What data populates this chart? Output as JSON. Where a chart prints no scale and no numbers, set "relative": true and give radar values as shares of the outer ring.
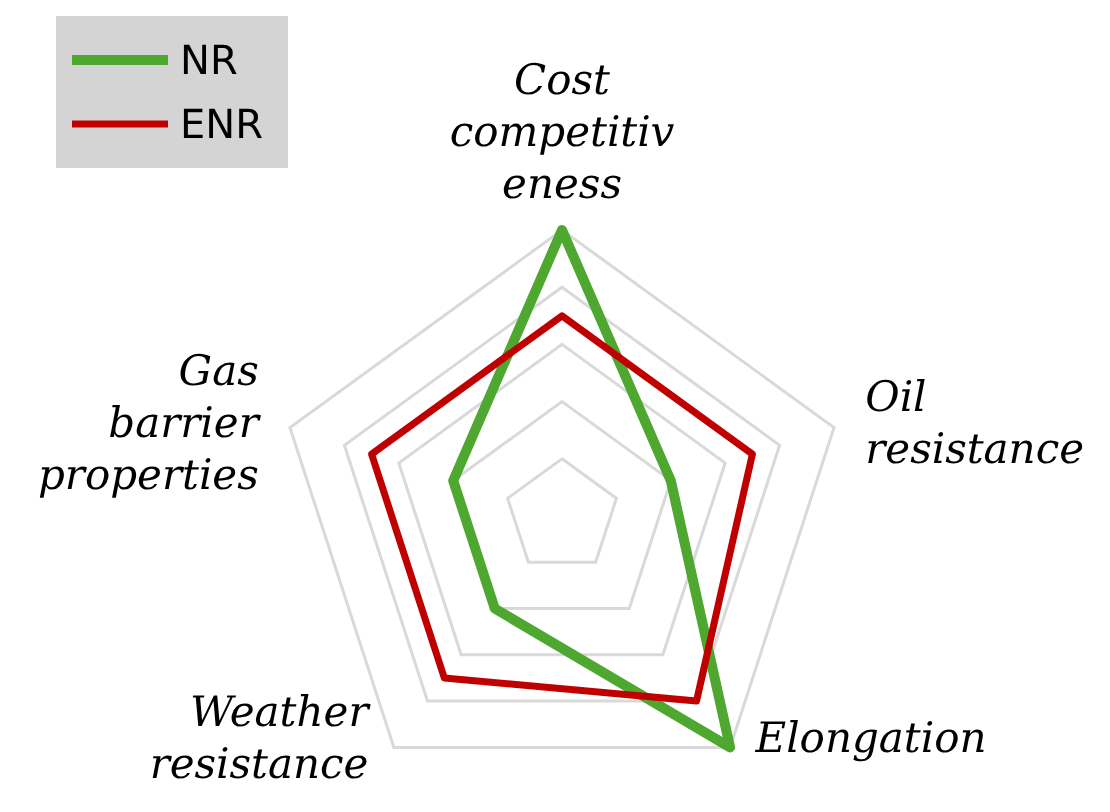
{
  "chart_data": {
    "type": "radar",
    "categories": [
      "Cost competitiveness",
      "Oil resistance",
      "Elongation",
      "Weather resistance",
      "Gas barrier properties"
    ],
    "series": [
      {
        "name": "NR",
        "color": "#4ea72e",
        "values": [
          1,
          0.4,
          1,
          0.4,
          0.4
        ]
      },
      {
        "name": "ENR",
        "color": "#c00000",
        "values": [
          0.7,
          0.7,
          0.8,
          0.7,
          0.7
        ]
      }
    ],
    "relative": true,
    "grid": true,
    "legend": "top left"
  }
}
